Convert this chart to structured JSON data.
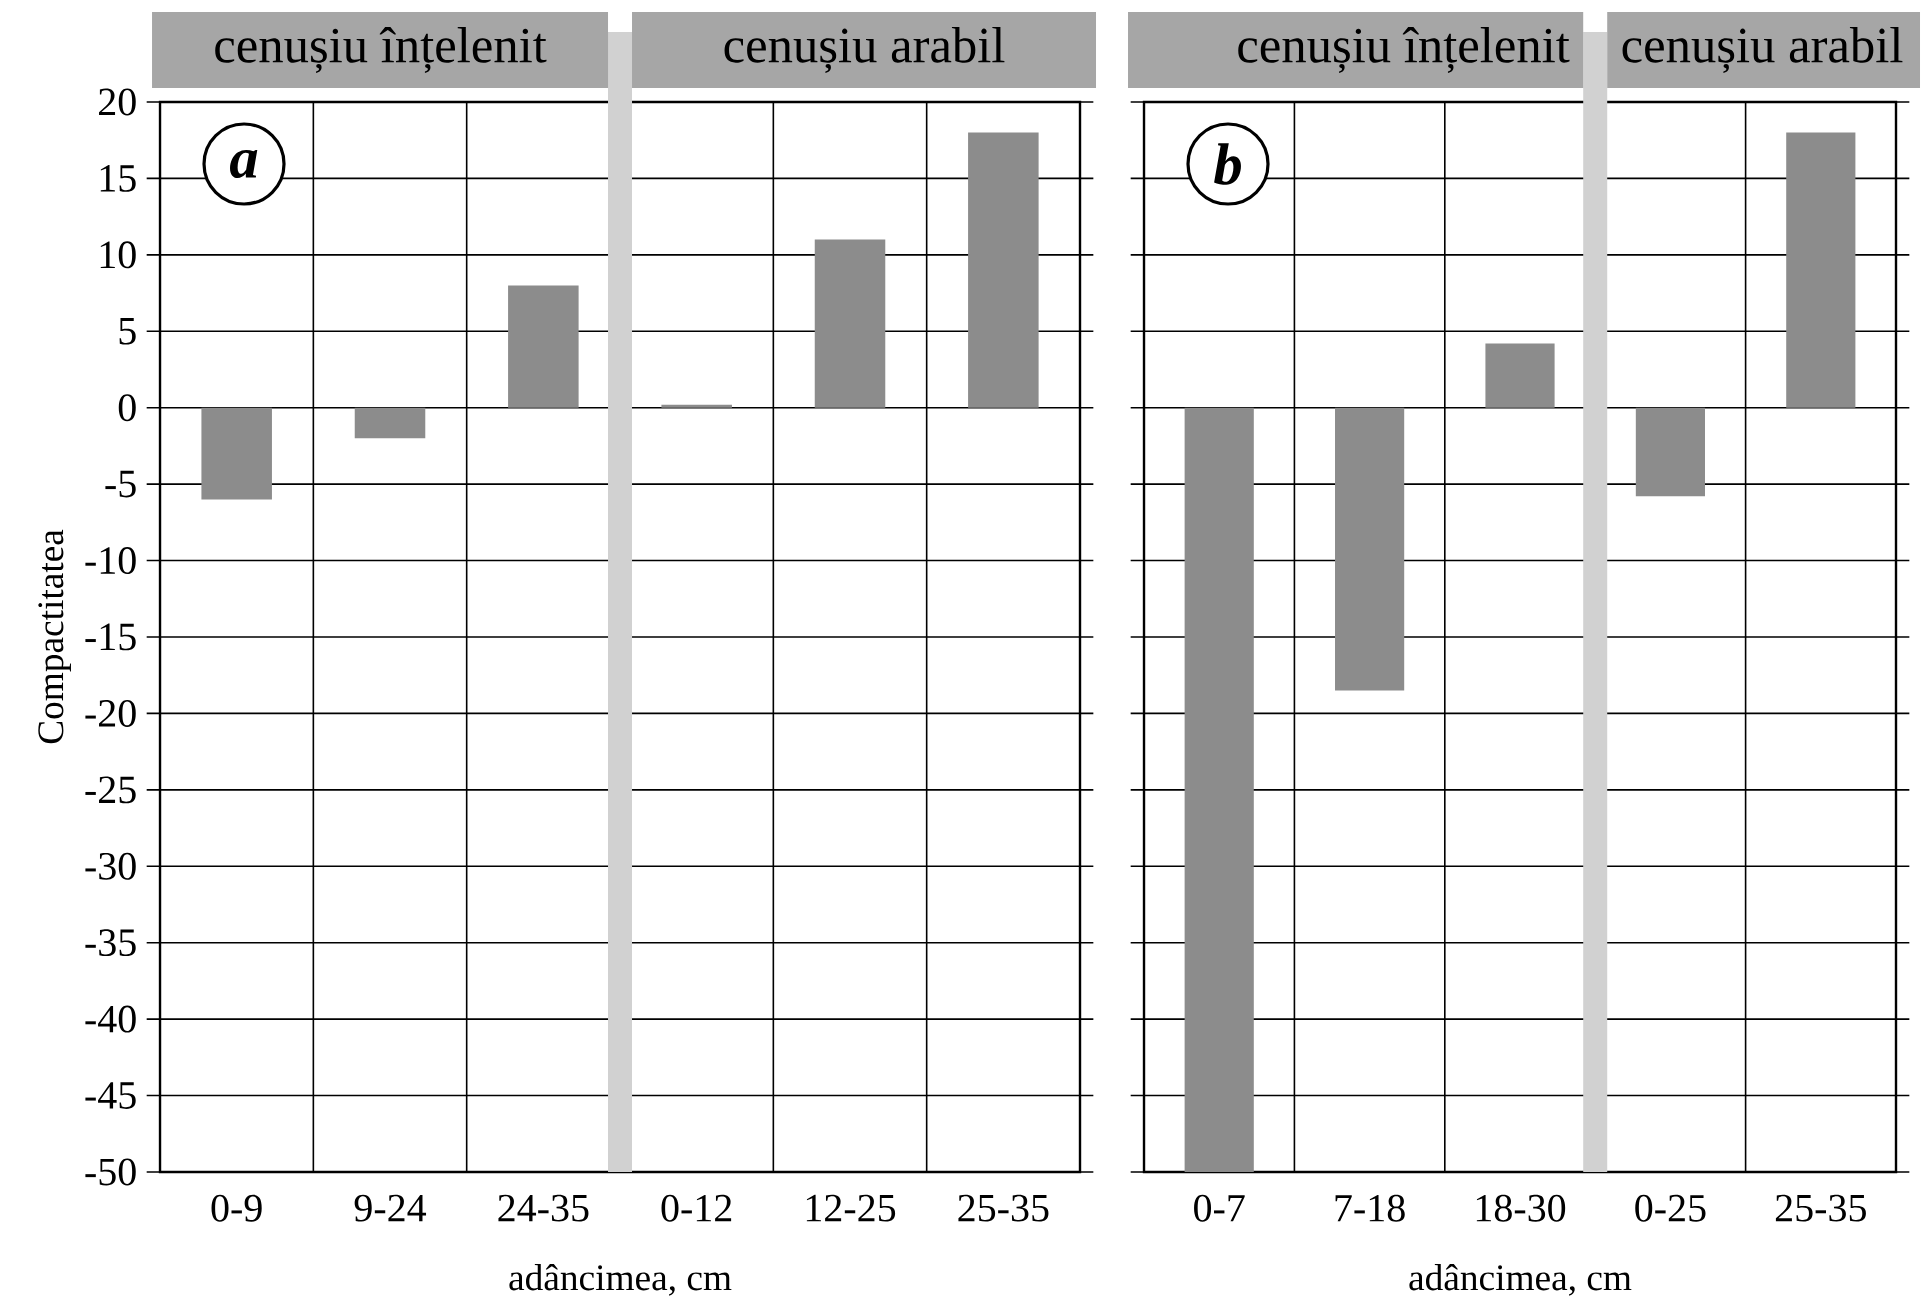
{
  "chart_data": [
    {
      "type": "bar",
      "categories": [
        "0-9",
        "9-24",
        "24-35",
        "0-12",
        "12-25",
        "25-35"
      ],
      "values": [
        -6,
        -2,
        8,
        0.2,
        11,
        18
      ],
      "color": "#8c8c8c",
      "ylim": [
        -50,
        20
      ],
      "yticks": [
        -50,
        -45,
        -40,
        -35,
        -30,
        -25,
        -20,
        -15,
        -10,
        -5,
        0,
        5,
        10,
        15,
        20
      ],
      "grid": true,
      "xlabel": "adâncimea, cm",
      "ylabel": "Compactitatea",
      "annotations": [
        "a",
        "cenușiu înțelenit",
        "cenușiu arabil"
      ]
    },
    {
      "type": "bar",
      "categories": [
        "0-7",
        "7-18",
        "18-30",
        "0-25",
        "25-35"
      ],
      "values": [
        -50,
        -18.5,
        4.2,
        -5.8,
        18
      ],
      "color": "#8c8c8c",
      "ylim": [
        -50,
        20
      ],
      "yticks": [
        -50,
        -45,
        -40,
        -35,
        -30,
        -25,
        -20,
        -15,
        -10,
        -5,
        0,
        5,
        10,
        15,
        20
      ],
      "grid": true,
      "tick_labels": "x",
      "xlabel": "adâncimea, cm",
      "annotations": [
        "b",
        "cenușiu înțelenit",
        "cenușiu arabil"
      ]
    }
  ]
}
